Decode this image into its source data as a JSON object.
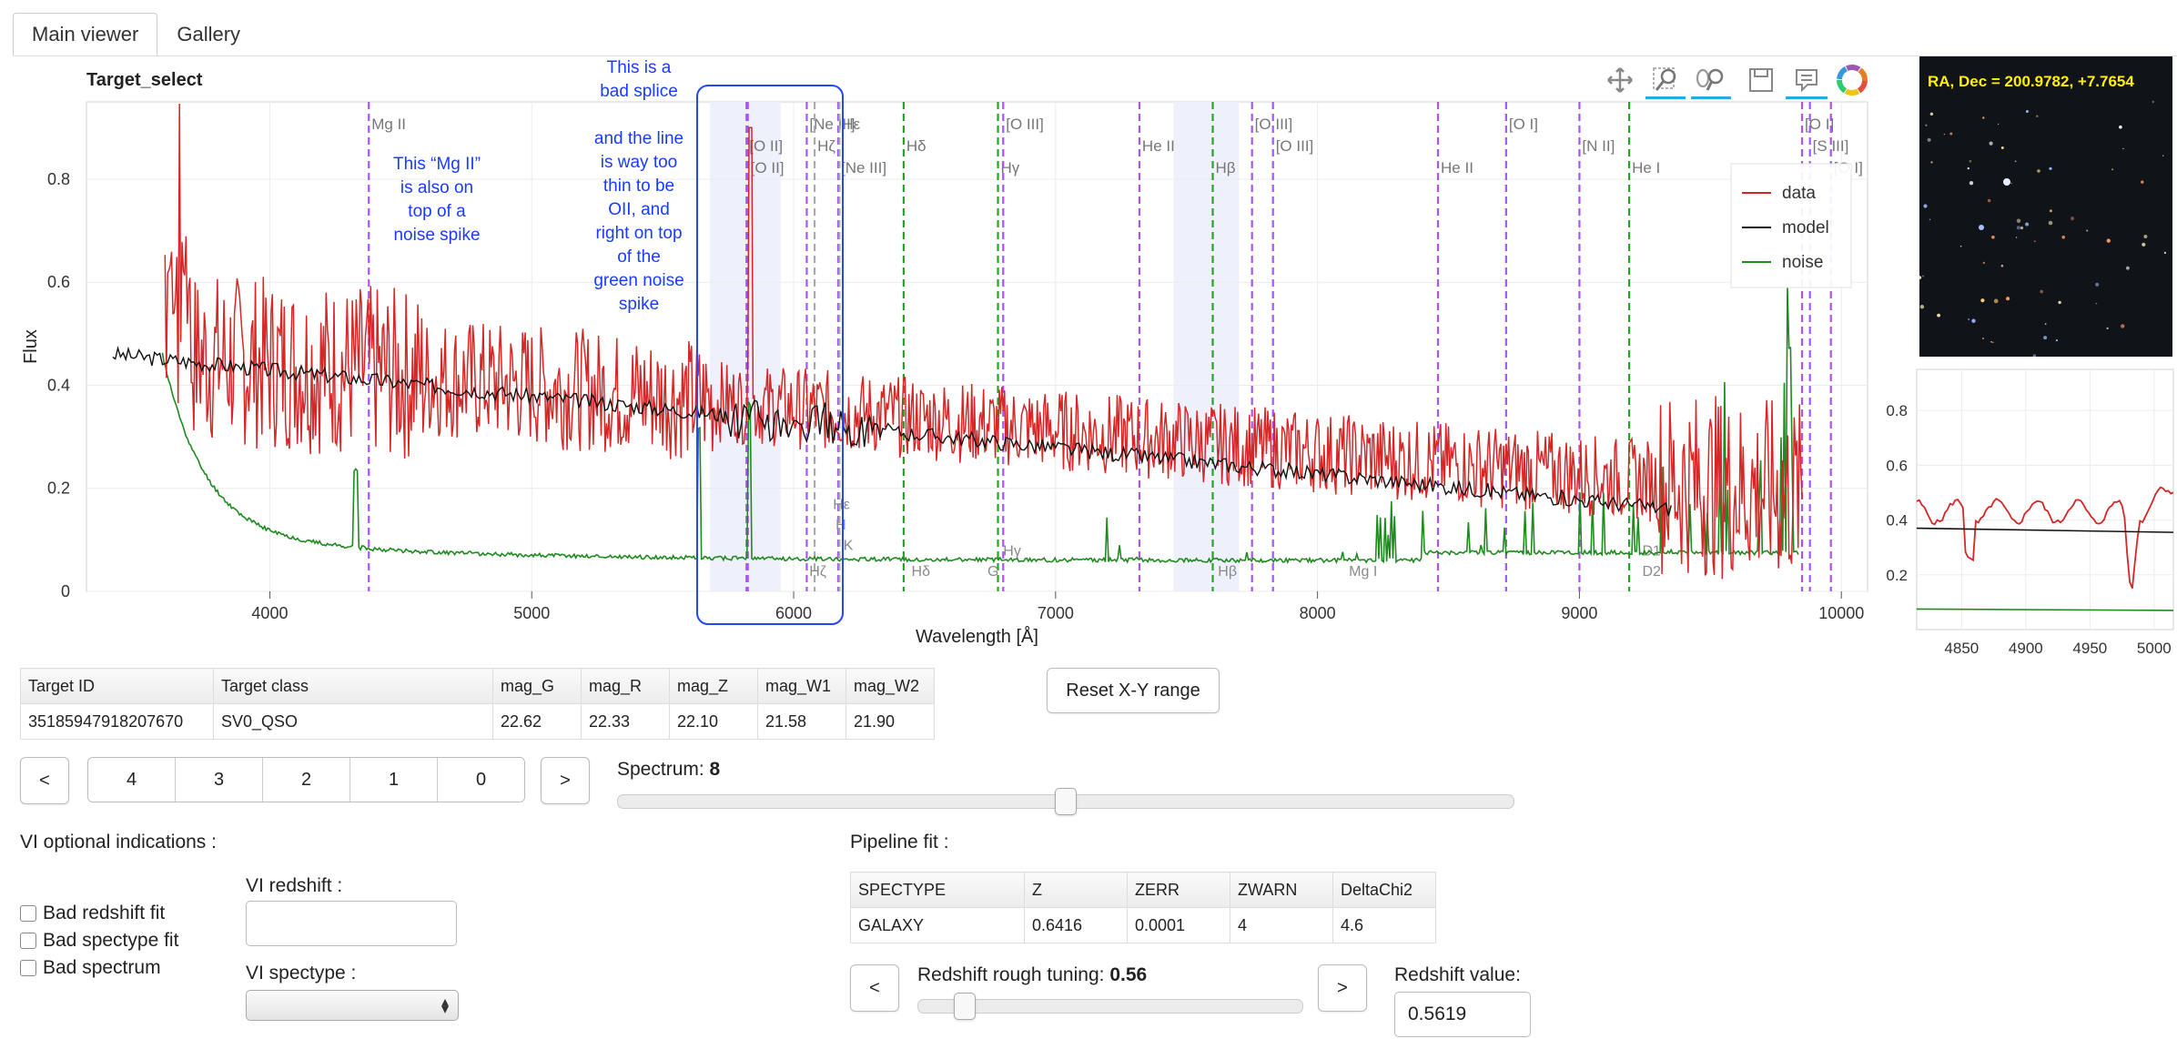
{
  "tabs": [
    {
      "label": "Main viewer"
    },
    {
      "label": "Gallery"
    }
  ],
  "plot": {
    "title": "Target_select",
    "x_label": "Wavelength [Å]",
    "y_label": "Flux",
    "x_ticks": [
      "4000",
      "5000",
      "6000",
      "7000",
      "8000",
      "9000",
      "10000"
    ],
    "y_ticks": [
      "0",
      "0.2",
      "0.4",
      "0.6",
      "0.8"
    ],
    "legend": [
      {
        "name": "data",
        "color": "#d62728"
      },
      {
        "name": "model",
        "color": "#111111"
      },
      {
        "name": "noise",
        "color": "#1f8a1f"
      }
    ],
    "annotations": [
      {
        "text": "This “Mg II”\nis also on\ntop of a\nnoise spike"
      },
      {
        "text": "This is a\nbad splice\n\nand the line\nis way too\nthin to be\nOII, and\nright on top\nof the\ngreen noise\nspike"
      }
    ],
    "lines": [
      {
        "label": "Mg II",
        "wave": 4378,
        "color": "#a855f7",
        "style": "dash"
      },
      {
        "label": "[O II]",
        "wave": 5820,
        "color": "#a855f7",
        "style": "dash"
      },
      {
        "label": "[O II]",
        "wave": 5825,
        "color": "#a855f7",
        "style": "dash"
      },
      {
        "label": "[Ne III]",
        "wave": 6050,
        "color": "#a855f7",
        "style": "dash"
      },
      {
        "label": "Hζ",
        "wave": 6080,
        "color": "#aaaaaa",
        "style": "dash"
      },
      {
        "label": "[Ne III]",
        "wave": 6170,
        "color": "#a855f7",
        "style": "dash"
      },
      {
        "label": "Hε",
        "wave": 6175,
        "color": "#aaaaaa",
        "style": "dash"
      },
      {
        "label": "Hδ",
        "wave": 6420,
        "color": "#2ca02c",
        "style": "dash"
      },
      {
        "label": "Hγ",
        "wave": 6780,
        "color": "#2ca02c",
        "style": "dash"
      },
      {
        "label": "[O III]",
        "wave": 6800,
        "color": "#a855f7",
        "style": "dash"
      },
      {
        "label": "He II",
        "wave": 7320,
        "color": "#a855f7",
        "style": "dash"
      },
      {
        "label": "Hβ",
        "wave": 7600,
        "color": "#2ca02c",
        "style": "dash"
      },
      {
        "label": "[O III]",
        "wave": 7750,
        "color": "#a855f7",
        "style": "dash"
      },
      {
        "label": "[O III]",
        "wave": 7830,
        "color": "#a855f7",
        "style": "dash"
      },
      {
        "label": "He II",
        "wave": 8460,
        "color": "#a855f7",
        "style": "dash"
      },
      {
        "label": "[O I]",
        "wave": 8720,
        "color": "#a855f7",
        "style": "dash"
      },
      {
        "label": "[N II]",
        "wave": 9000,
        "color": "#a855f7",
        "style": "dash"
      },
      {
        "label": "He I",
        "wave": 9190,
        "color": "#2ca02c",
        "style": "dash"
      },
      {
        "label": "[O I]",
        "wave": 9850,
        "color": "#a855f7",
        "style": "dash"
      },
      {
        "label": "[S III]",
        "wave": 9880,
        "color": "#a855f7",
        "style": "dash"
      },
      {
        "label": "[O I]",
        "wave": 9960,
        "color": "#a855f7",
        "style": "dash"
      }
    ],
    "absorption_labels": [
      "Hζ",
      "Hε",
      "H",
      "K",
      "Hδ",
      "G",
      "Hγ",
      "Hβ",
      "Mg I",
      "D1",
      "D2"
    ],
    "inset_x_ticks": [
      "4850",
      "4900",
      "4950",
      "5000"
    ],
    "inset_y_ticks": [
      "0.2",
      "0.4",
      "0.6",
      "0.8"
    ]
  },
  "imaging": {
    "label": "RA, Dec = 200.9782, +7.7654"
  },
  "target_table": {
    "headers": [
      "Target ID",
      "Target class",
      "mag_G",
      "mag_R",
      "mag_Z",
      "mag_W1",
      "mag_W2"
    ],
    "row": [
      "35185947918207670",
      "SV0_QSO",
      "22.62",
      "22.33",
      "22.10",
      "21.58",
      "21.90"
    ]
  },
  "reset_button": "Reset X-Y range",
  "nav": {
    "prev": "<",
    "next": ">",
    "pages": [
      "4",
      "3",
      "2",
      "1",
      "0"
    ]
  },
  "spectrum_slider": {
    "label": "Spectrum: ",
    "value": "8",
    "fraction": 0.5
  },
  "vi_optional": {
    "title": "VI optional indications :",
    "checkboxes": [
      "Bad redshift fit",
      "Bad spectype fit",
      "Bad spectrum"
    ]
  },
  "vi_redshift": {
    "label": "VI redshift :",
    "value": ""
  },
  "vi_spectype": {
    "label": "VI spectype :",
    "value": ""
  },
  "pipeline": {
    "title": "Pipeline fit :",
    "headers": [
      "SPECTYPE",
      "Z",
      "ZERR",
      "ZWARN",
      "DeltaChi2"
    ],
    "row": [
      "GALAXY",
      "0.6416",
      "0.0001",
      "4",
      "4.6"
    ]
  },
  "redshift_tuning": {
    "label": "Redshift rough tuning: ",
    "value": "0.56",
    "fraction": 0.12
  },
  "redshift_value": {
    "label": "Redshift value:",
    "value": "0.5619"
  },
  "colors": {
    "accent": "#26aae1",
    "annotation": "#1a3cff"
  }
}
